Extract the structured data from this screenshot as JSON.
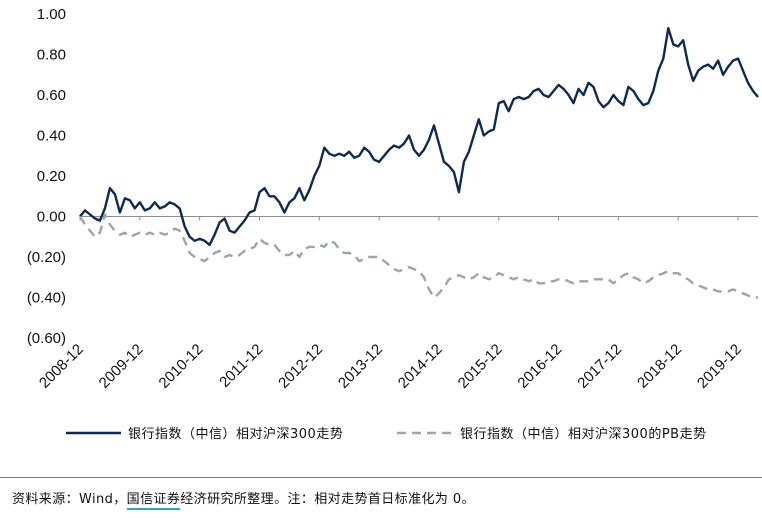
{
  "chart_data": {
    "type": "line",
    "ylim": [
      -0.6,
      1.0
    ],
    "y_ticks": [
      "1.00",
      "0.80",
      "0.60",
      "0.40",
      "0.20",
      "0.00",
      "(0.20)",
      "(0.40)",
      "(0.60)"
    ],
    "y_tick_values": [
      1.0,
      0.8,
      0.6,
      0.4,
      0.2,
      0.0,
      -0.2,
      -0.4,
      -0.6
    ],
    "x_ticks": [
      "2008-12",
      "2009-12",
      "2010-12",
      "2011-12",
      "2012-12",
      "2013-12",
      "2014-12",
      "2015-12",
      "2016-12",
      "2017-12",
      "2018-12",
      "2019-12"
    ],
    "x_tick_months": [
      0,
      12,
      24,
      36,
      48,
      60,
      72,
      84,
      96,
      108,
      120,
      132
    ],
    "x_range_months": [
      0,
      136
    ],
    "legend_position": "bottom",
    "series": [
      {
        "name": "银行指数（中信）相对沪深300走势",
        "color": "#0f2a52",
        "style": "solid",
        "points": [
          [
            0,
            0.0
          ],
          [
            1,
            0.03
          ],
          [
            2,
            0.01
          ],
          [
            3,
            -0.01
          ],
          [
            4,
            -0.02
          ],
          [
            5,
            0.04
          ],
          [
            6,
            0.14
          ],
          [
            7,
            0.11
          ],
          [
            8,
            0.02
          ],
          [
            9,
            0.09
          ],
          [
            10,
            0.08
          ],
          [
            11,
            0.04
          ],
          [
            12,
            0.07
          ],
          [
            13,
            0.03
          ],
          [
            14,
            0.04
          ],
          [
            15,
            0.07
          ],
          [
            16,
            0.04
          ],
          [
            17,
            0.05
          ],
          [
            18,
            0.07
          ],
          [
            19,
            0.06
          ],
          [
            20,
            0.04
          ],
          [
            21,
            -0.05
          ],
          [
            22,
            -0.1
          ],
          [
            23,
            -0.12
          ],
          [
            24,
            -0.11
          ],
          [
            25,
            -0.12
          ],
          [
            26,
            -0.14
          ],
          [
            27,
            -0.09
          ],
          [
            28,
            -0.03
          ],
          [
            29,
            -0.01
          ],
          [
            30,
            -0.07
          ],
          [
            31,
            -0.08
          ],
          [
            32,
            -0.05
          ],
          [
            33,
            -0.02
          ],
          [
            34,
            0.02
          ],
          [
            35,
            0.03
          ],
          [
            36,
            0.12
          ],
          [
            37,
            0.14
          ],
          [
            38,
            0.1
          ],
          [
            39,
            0.1
          ],
          [
            40,
            0.07
          ],
          [
            41,
            0.02
          ],
          [
            42,
            0.07
          ],
          [
            43,
            0.09
          ],
          [
            44,
            0.14
          ],
          [
            45,
            0.08
          ],
          [
            46,
            0.13
          ],
          [
            47,
            0.2
          ],
          [
            48,
            0.25
          ],
          [
            49,
            0.34
          ],
          [
            50,
            0.31
          ],
          [
            51,
            0.3
          ],
          [
            52,
            0.31
          ],
          [
            53,
            0.3
          ],
          [
            54,
            0.32
          ],
          [
            55,
            0.29
          ],
          [
            56,
            0.3
          ],
          [
            57,
            0.34
          ],
          [
            58,
            0.32
          ],
          [
            59,
            0.28
          ],
          [
            60,
            0.27
          ],
          [
            61,
            0.3
          ],
          [
            62,
            0.33
          ],
          [
            63,
            0.35
          ],
          [
            64,
            0.34
          ],
          [
            65,
            0.36
          ],
          [
            66,
            0.4
          ],
          [
            67,
            0.33
          ],
          [
            68,
            0.3
          ],
          [
            69,
            0.33
          ],
          [
            70,
            0.38
          ],
          [
            71,
            0.45
          ],
          [
            72,
            0.36
          ],
          [
            73,
            0.27
          ],
          [
            74,
            0.25
          ],
          [
            75,
            0.22
          ],
          [
            76,
            0.12
          ],
          [
            77,
            0.27
          ],
          [
            78,
            0.32
          ],
          [
            79,
            0.4
          ],
          [
            80,
            0.48
          ],
          [
            81,
            0.4
          ],
          [
            82,
            0.42
          ],
          [
            83,
            0.43
          ],
          [
            84,
            0.56
          ],
          [
            85,
            0.57
          ],
          [
            86,
            0.52
          ],
          [
            87,
            0.58
          ],
          [
            88,
            0.59
          ],
          [
            89,
            0.58
          ],
          [
            90,
            0.59
          ],
          [
            91,
            0.62
          ],
          [
            92,
            0.63
          ],
          [
            93,
            0.6
          ],
          [
            94,
            0.59
          ],
          [
            95,
            0.62
          ],
          [
            96,
            0.65
          ],
          [
            97,
            0.63
          ],
          [
            98,
            0.6
          ],
          [
            99,
            0.56
          ],
          [
            100,
            0.63
          ],
          [
            101,
            0.6
          ],
          [
            102,
            0.66
          ],
          [
            103,
            0.64
          ],
          [
            104,
            0.57
          ],
          [
            105,
            0.54
          ],
          [
            106,
            0.56
          ],
          [
            107,
            0.6
          ],
          [
            108,
            0.57
          ],
          [
            109,
            0.55
          ],
          [
            110,
            0.64
          ],
          [
            111,
            0.62
          ],
          [
            112,
            0.58
          ],
          [
            113,
            0.55
          ],
          [
            114,
            0.56
          ],
          [
            115,
            0.62
          ],
          [
            116,
            0.72
          ],
          [
            117,
            0.78
          ],
          [
            118,
            0.93
          ],
          [
            119,
            0.85
          ],
          [
            120,
            0.84
          ],
          [
            121,
            0.87
          ],
          [
            122,
            0.75
          ],
          [
            123,
            0.67
          ],
          [
            124,
            0.72
          ],
          [
            125,
            0.74
          ],
          [
            126,
            0.75
          ],
          [
            127,
            0.73
          ],
          [
            128,
            0.77
          ],
          [
            129,
            0.7
          ],
          [
            130,
            0.74
          ],
          [
            131,
            0.77
          ],
          [
            132,
            0.78
          ],
          [
            133,
            0.72
          ],
          [
            134,
            0.66
          ],
          [
            135,
            0.62
          ],
          [
            136,
            0.59
          ]
        ]
      },
      {
        "name": "银行指数（中信）相对沪深300的PB走势",
        "color": "#9fa3aa",
        "style": "dashed",
        "points": [
          [
            0,
            0.0
          ],
          [
            1,
            -0.04
          ],
          [
            2,
            -0.07
          ],
          [
            3,
            -0.1
          ],
          [
            4,
            -0.08
          ],
          [
            5,
            0.01
          ],
          [
            6,
            -0.04
          ],
          [
            7,
            -0.07
          ],
          [
            8,
            -0.09
          ],
          [
            9,
            -0.08
          ],
          [
            10,
            -0.1
          ],
          [
            11,
            -0.09
          ],
          [
            12,
            -0.08
          ],
          [
            13,
            -0.09
          ],
          [
            14,
            -0.08
          ],
          [
            15,
            -0.09
          ],
          [
            16,
            -0.08
          ],
          [
            17,
            -0.09
          ],
          [
            18,
            -0.08
          ],
          [
            19,
            -0.06
          ],
          [
            20,
            -0.07
          ],
          [
            21,
            -0.12
          ],
          [
            22,
            -0.18
          ],
          [
            23,
            -0.2
          ],
          [
            24,
            -0.21
          ],
          [
            25,
            -0.22
          ],
          [
            26,
            -0.2
          ],
          [
            27,
            -0.18
          ],
          [
            28,
            -0.17
          ],
          [
            29,
            -0.2
          ],
          [
            30,
            -0.19
          ],
          [
            31,
            -0.2
          ],
          [
            32,
            -0.19
          ],
          [
            33,
            -0.17
          ],
          [
            34,
            -0.16
          ],
          [
            35,
            -0.15
          ],
          [
            36,
            -0.11
          ],
          [
            37,
            -0.13
          ],
          [
            38,
            -0.14
          ],
          [
            39,
            -0.14
          ],
          [
            40,
            -0.17
          ],
          [
            41,
            -0.19
          ],
          [
            42,
            -0.19
          ],
          [
            43,
            -0.17
          ],
          [
            44,
            -0.2
          ],
          [
            45,
            -0.16
          ],
          [
            46,
            -0.15
          ],
          [
            47,
            -0.15
          ],
          [
            48,
            -0.14
          ],
          [
            49,
            -0.15
          ],
          [
            50,
            -0.12
          ],
          [
            51,
            -0.13
          ],
          [
            52,
            -0.16
          ],
          [
            53,
            -0.18
          ],
          [
            54,
            -0.18
          ],
          [
            55,
            -0.19
          ],
          [
            56,
            -0.22
          ],
          [
            57,
            -0.21
          ],
          [
            58,
            -0.2
          ],
          [
            59,
            -0.2
          ],
          [
            60,
            -0.2
          ],
          [
            61,
            -0.22
          ],
          [
            62,
            -0.24
          ],
          [
            63,
            -0.26
          ],
          [
            64,
            -0.27
          ],
          [
            65,
            -0.26
          ],
          [
            66,
            -0.25
          ],
          [
            67,
            -0.26
          ],
          [
            68,
            -0.27
          ],
          [
            69,
            -0.3
          ],
          [
            70,
            -0.36
          ],
          [
            71,
            -0.4
          ],
          [
            72,
            -0.38
          ],
          [
            73,
            -0.35
          ],
          [
            74,
            -0.31
          ],
          [
            75,
            -0.3
          ],
          [
            76,
            -0.29
          ],
          [
            77,
            -0.3
          ],
          [
            78,
            -0.31
          ],
          [
            79,
            -0.3
          ],
          [
            80,
            -0.28
          ],
          [
            81,
            -0.3
          ],
          [
            82,
            -0.31
          ],
          [
            83,
            -0.3
          ],
          [
            84,
            -0.28
          ],
          [
            85,
            -0.29
          ],
          [
            86,
            -0.3
          ],
          [
            87,
            -0.31
          ],
          [
            88,
            -0.3
          ],
          [
            89,
            -0.31
          ],
          [
            90,
            -0.32
          ],
          [
            91,
            -0.31
          ],
          [
            92,
            -0.33
          ],
          [
            93,
            -0.33
          ],
          [
            94,
            -0.32
          ],
          [
            95,
            -0.32
          ],
          [
            96,
            -0.31
          ],
          [
            97,
            -0.31
          ],
          [
            98,
            -0.32
          ],
          [
            99,
            -0.33
          ],
          [
            100,
            -0.32
          ],
          [
            101,
            -0.32
          ],
          [
            102,
            -0.32
          ],
          [
            103,
            -0.31
          ],
          [
            104,
            -0.31
          ],
          [
            105,
            -0.31
          ],
          [
            106,
            -0.31
          ],
          [
            107,
            -0.33
          ],
          [
            108,
            -0.31
          ],
          [
            109,
            -0.29
          ],
          [
            110,
            -0.28
          ],
          [
            111,
            -0.3
          ],
          [
            112,
            -0.31
          ],
          [
            113,
            -0.33
          ],
          [
            114,
            -0.32
          ],
          [
            115,
            -0.3
          ],
          [
            116,
            -0.29
          ],
          [
            117,
            -0.28
          ],
          [
            118,
            -0.27
          ],
          [
            119,
            -0.28
          ],
          [
            120,
            -0.28
          ],
          [
            121,
            -0.3
          ],
          [
            122,
            -0.31
          ],
          [
            123,
            -0.33
          ],
          [
            124,
            -0.34
          ],
          [
            125,
            -0.35
          ],
          [
            126,
            -0.36
          ],
          [
            127,
            -0.36
          ],
          [
            128,
            -0.37
          ],
          [
            129,
            -0.37
          ],
          [
            130,
            -0.37
          ],
          [
            131,
            -0.36
          ],
          [
            132,
            -0.37
          ],
          [
            133,
            -0.38
          ],
          [
            134,
            -0.39
          ],
          [
            135,
            -0.4
          ],
          [
            136,
            -0.4
          ]
        ]
      }
    ]
  },
  "source": {
    "prefix": "资料来源：Wind，",
    "org": "国信证券",
    "suffix": "经济研究所整理。注：相对走势首日标准化为 0。"
  }
}
